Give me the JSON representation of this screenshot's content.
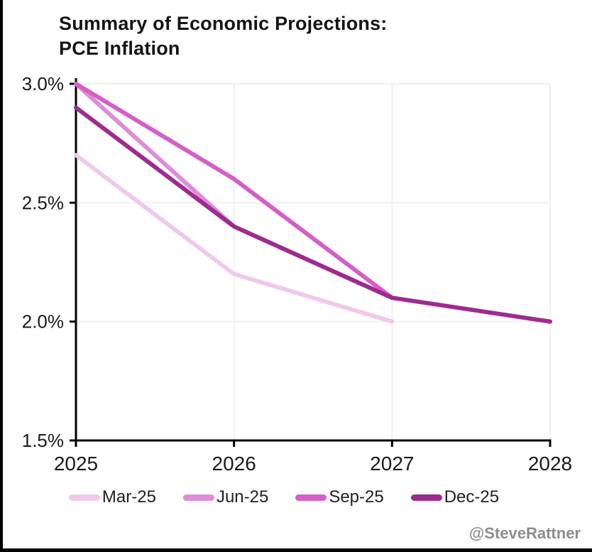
{
  "header": {
    "title_line1": "Summary of Economic Projections:",
    "title_line2": "PCE Inflation"
  },
  "watermark": "@SteveRattner",
  "colors": {
    "background": "#ffffff",
    "frame_border": "#000000",
    "gridline": "#f0f0f0",
    "axis": "#000000",
    "title_text": "#141414",
    "tick_text": "#1a1a1a",
    "watermark_text": "#8d8d8d"
  },
  "chart_data": {
    "type": "line",
    "title": "Summary of Economic Projections: PCE Inflation",
    "x": [
      2025,
      2026,
      2027,
      2028
    ],
    "x_tick_labels": [
      "2025",
      "2026",
      "2027",
      "2028"
    ],
    "y_tick_labels": [
      "3.0%",
      "2.5%",
      "2.0%",
      "1.5%"
    ],
    "y_tick_values": [
      3.0,
      2.5,
      2.0,
      1.5
    ],
    "ylim": [
      1.5,
      3.0
    ],
    "unit": "percent",
    "grid": true,
    "legend_position": "bottom",
    "series": [
      {
        "name": "Mar-25",
        "color": "#EFC9EB",
        "values": [
          2.7,
          2.2,
          2.0,
          null
        ]
      },
      {
        "name": "Jun-25",
        "color": "#DD8DD5",
        "values": [
          3.0,
          2.4,
          2.1,
          null
        ]
      },
      {
        "name": "Sep-25",
        "color": "#D45FC7",
        "values": [
          3.0,
          2.6,
          2.1,
          null
        ]
      },
      {
        "name": "Dec-25",
        "color": "#9E2B90",
        "values": [
          2.9,
          2.4,
          2.1,
          2.0
        ]
      }
    ]
  }
}
